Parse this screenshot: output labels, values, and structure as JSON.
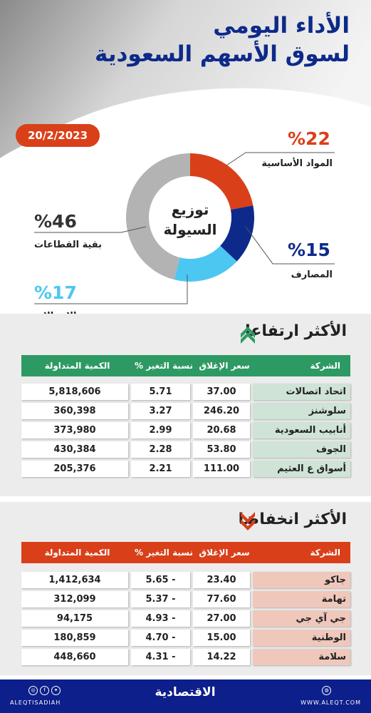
{
  "header": {
    "title_line1": "الأداء اليومي",
    "title_line2": "لسوق الأسهم السعودية",
    "date": "20/2/2023"
  },
  "liquidity": {
    "center_line1": "توزيع",
    "center_line2": "السيولة",
    "segments": [
      {
        "label": "المواد الأساسية",
        "value_text": "%22",
        "value": 22,
        "color": "#d9401a"
      },
      {
        "label": "المصارف",
        "value_text": "%15",
        "value": 15,
        "color": "#0d2a8a"
      },
      {
        "label": "الاتصالات",
        "value_text": "%17",
        "value": 17,
        "color": "#4cc7f2"
      },
      {
        "label": "بقية القطاعات",
        "value_text": "%46",
        "value": 46,
        "color": "#b3b3b3"
      }
    ]
  },
  "gainers": {
    "title": "الأكثر ارتفاعا",
    "header_color": "#2e9a63",
    "name_bg": "#cfe3d6",
    "columns": [
      "الشركة",
      "سعر الإغلاق",
      "نسبة التغير %",
      "الكمية المتداولة"
    ],
    "rows": [
      {
        "name": "اتحاد اتصالات",
        "close": "37.00",
        "change": "5.71",
        "volume": "5,818,606"
      },
      {
        "name": "سلوشنز",
        "close": "246.20",
        "change": "3.27",
        "volume": "360,398"
      },
      {
        "name": "أنابيب السعودية",
        "close": "20.68",
        "change": "2.99",
        "volume": "373,980"
      },
      {
        "name": "الجوف",
        "close": "53.80",
        "change": "2.28",
        "volume": "430,384"
      },
      {
        "name": "أسواق ع العثيم",
        "close": "111.00",
        "change": "2.21",
        "volume": "205,376"
      }
    ]
  },
  "losers": {
    "title": "الأكثر انخفاضا",
    "header_color": "#d9401a",
    "name_bg": "#f0c7bb",
    "columns": [
      "الشركة",
      "سعر الإغلاق",
      "نسبة التغير %",
      "الكمية المتداولة"
    ],
    "rows": [
      {
        "name": "جاكو",
        "close": "23.40",
        "change": "5.65 -",
        "volume": "1,412,634"
      },
      {
        "name": "تهامة",
        "close": "77.60",
        "change": "5.37 -",
        "volume": "312,099"
      },
      {
        "name": "جي آي جي",
        "close": "27.00",
        "change": "4.93 -",
        "volume": "94,175"
      },
      {
        "name": "الوطنية",
        "close": "15.00",
        "change": "4.70 -",
        "volume": "180,859"
      },
      {
        "name": "سلامة",
        "close": "14.22",
        "change": "4.31 -",
        "volume": "448,660"
      }
    ]
  },
  "footer": {
    "handle": "ALEQTISADIAH",
    "logo": "الاقتصادية",
    "website": "WWW.ALEQT.COM",
    "social_icons": [
      "instagram-icon",
      "facebook-icon",
      "twitter-icon"
    ],
    "web_icon": "globe-icon"
  }
}
